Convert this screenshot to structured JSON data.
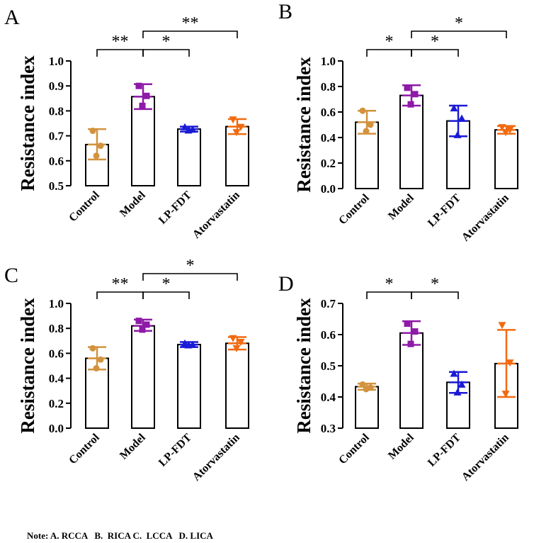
{
  "figure": {
    "note": "Note: A. RCCA   B.  RICA C.  LCCA   D. LICA"
  },
  "colors": {
    "control": "#D2923E",
    "model": "#8E1AA8",
    "lpfdt": "#1A1AD6",
    "atorvastatin": "#F26A10",
    "axis": "#000000"
  },
  "chart_data": [
    {
      "type": "bar",
      "panel": "A",
      "ylabel": "Resistance index",
      "ylim": [
        0.5,
        1.0
      ],
      "yticks": [
        "0.5",
        "0.6",
        "0.7",
        "0.8",
        "0.9",
        "1.0"
      ],
      "categories": [
        "Control",
        "Model",
        "LP-FDT",
        "Atorvastatin"
      ],
      "values": [
        0.665,
        0.857,
        0.727,
        0.737
      ],
      "error_low": [
        0.605,
        0.807,
        0.717,
        0.707
      ],
      "error_high": [
        0.727,
        0.907,
        0.737,
        0.767
      ],
      "points": [
        [
          0.72,
          0.66,
          0.62
        ],
        [
          0.9,
          0.86,
          0.82
        ],
        [
          0.735,
          0.725,
          0.722
        ],
        [
          0.765,
          0.735,
          0.714
        ]
      ],
      "markers": [
        "circle",
        "square",
        "triangle",
        "triangle-down"
      ],
      "significance": [
        {
          "from": 0,
          "to": 1,
          "label": "**",
          "level": 0
        },
        {
          "from": 1,
          "to": 2,
          "label": "*",
          "level": 0
        },
        {
          "from": 1,
          "to": 3,
          "label": "**",
          "level": 1
        }
      ]
    },
    {
      "type": "bar",
      "panel": "B",
      "ylabel": "Resistance index",
      "ylim": [
        0.0,
        1.0
      ],
      "yticks": [
        "0.0",
        "0.2",
        "0.4",
        "0.6",
        "0.8",
        "1.0"
      ],
      "categories": [
        "Control",
        "Model",
        "LP-FDT",
        "Atorvastatin"
      ],
      "values": [
        0.52,
        0.73,
        0.53,
        0.46
      ],
      "error_low": [
        0.43,
        0.65,
        0.41,
        0.43
      ],
      "error_high": [
        0.61,
        0.81,
        0.65,
        0.49
      ],
      "points": [
        [
          0.61,
          0.5,
          0.45
        ],
        [
          0.79,
          0.74,
          0.66
        ],
        [
          0.63,
          0.55,
          0.42
        ],
        [
          0.48,
          0.46,
          0.44
        ]
      ],
      "markers": [
        "circle",
        "square",
        "triangle",
        "triangle-down"
      ],
      "significance": [
        {
          "from": 0,
          "to": 1,
          "label": "*",
          "level": 0
        },
        {
          "from": 1,
          "to": 2,
          "label": "*",
          "level": 0
        },
        {
          "from": 1,
          "to": 3,
          "label": "*",
          "level": 1
        }
      ]
    },
    {
      "type": "bar",
      "panel": "C",
      "ylabel": "Resistance index",
      "ylim": [
        0.0,
        1.0
      ],
      "yticks": [
        "0.0",
        "0.2",
        "0.4",
        "0.6",
        "0.8",
        "1.0"
      ],
      "categories": [
        "Control",
        "Model",
        "LP-FDT",
        "Atorvastatin"
      ],
      "values": [
        0.56,
        0.82,
        0.67,
        0.68
      ],
      "error_low": [
        0.47,
        0.78,
        0.65,
        0.63
      ],
      "error_high": [
        0.65,
        0.87,
        0.69,
        0.73
      ],
      "points": [
        [
          0.64,
          0.55,
          0.48
        ],
        [
          0.86,
          0.83,
          0.79
        ],
        [
          0.68,
          0.67,
          0.665
        ],
        [
          0.72,
          0.69,
          0.64
        ]
      ],
      "markers": [
        "circle",
        "square",
        "triangle",
        "triangle-down"
      ],
      "significance": [
        {
          "from": 0,
          "to": 1,
          "label": "**",
          "level": 0
        },
        {
          "from": 1,
          "to": 2,
          "label": "*",
          "level": 0
        },
        {
          "from": 1,
          "to": 3,
          "label": "*",
          "level": 1
        }
      ]
    },
    {
      "type": "bar",
      "panel": "D",
      "ylabel": "Resistance index",
      "ylim": [
        0.3,
        0.7
      ],
      "yticks": [
        "0.3",
        "0.4",
        "0.5",
        "0.6",
        "0.7"
      ],
      "categories": [
        "Control",
        "Model",
        "LP-FDT",
        "Atorvastatin"
      ],
      "values": [
        0.433,
        0.605,
        0.447,
        0.507
      ],
      "error_low": [
        0.423,
        0.567,
        0.413,
        0.4
      ],
      "error_high": [
        0.443,
        0.643,
        0.48,
        0.615
      ],
      "points": [
        [
          0.44,
          0.43,
          0.425
        ],
        [
          0.635,
          0.61,
          0.57
        ],
        [
          0.475,
          0.44,
          0.415
        ],
        [
          0.63,
          0.51,
          0.41
        ]
      ],
      "markers": [
        "circle",
        "square",
        "triangle",
        "triangle-down"
      ],
      "significance": [
        {
          "from": 0,
          "to": 1,
          "label": "*",
          "level": 0
        },
        {
          "from": 1,
          "to": 2,
          "label": "*",
          "level": 0
        }
      ]
    }
  ]
}
